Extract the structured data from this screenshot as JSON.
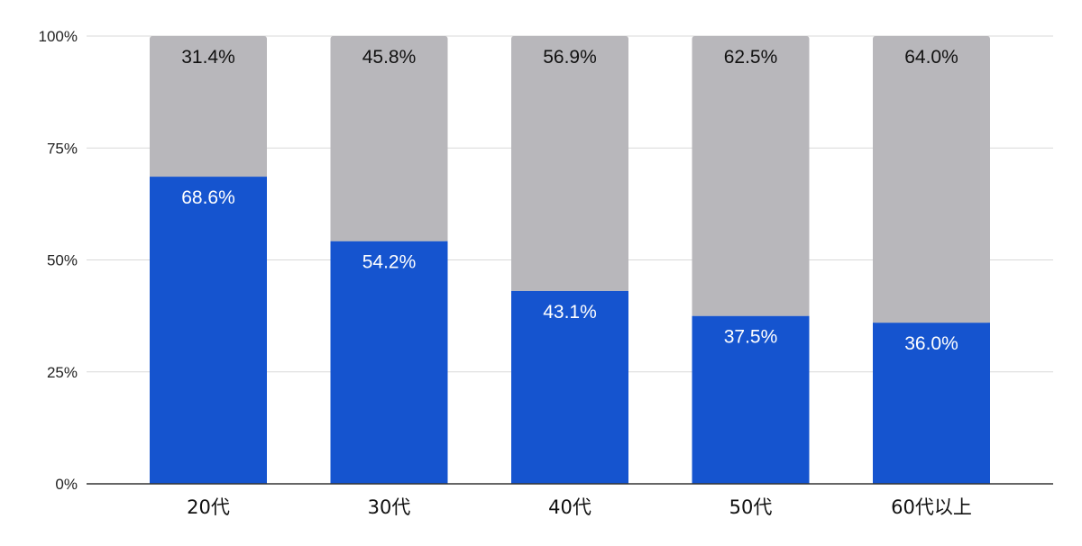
{
  "chart_data": {
    "type": "bar",
    "stacked": true,
    "percent_stacked": true,
    "categories": [
      "20代",
      "30代",
      "40代",
      "50代",
      "60代以上"
    ],
    "series": [
      {
        "values": [
          68.6,
          54.2,
          43.1,
          37.5,
          36.0
        ],
        "color": "#1554cf",
        "label_color": "#ffffff"
      },
      {
        "values": [
          31.4,
          45.8,
          56.9,
          62.5,
          64.0
        ],
        "color": "#b8b7bb",
        "label_color": "#111111"
      }
    ],
    "data_labels": [
      [
        "68.6%",
        "54.2%",
        "43.1%",
        "37.5%",
        "36.0%"
      ],
      [
        "31.4%",
        "45.8%",
        "56.9%",
        "62.5%",
        "64.0%"
      ]
    ],
    "yticks": [
      0,
      25,
      50,
      75,
      100
    ],
    "ytick_labels": [
      "0%",
      "25%",
      "50%",
      "75%",
      "100%"
    ],
    "ylim": [
      0,
      100
    ],
    "grid": true,
    "legend": "none",
    "title": "",
    "xlabel": "",
    "ylabel": "",
    "colors": {
      "grid": "#d9d9d9",
      "axis": "#333333"
    }
  }
}
